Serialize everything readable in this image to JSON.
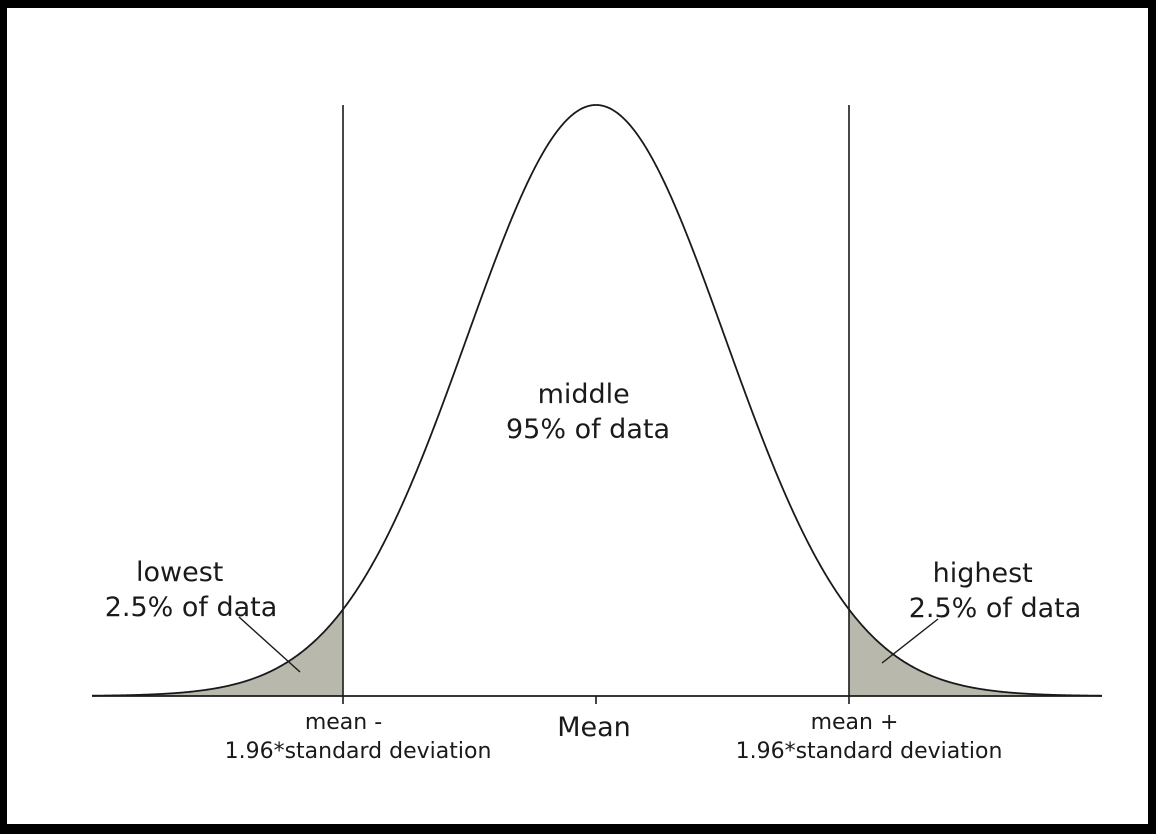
{
  "colors": {
    "curve": "#1a1a1a",
    "tail_fill": "#b9b8ad",
    "background": "#ffffff",
    "frame": "#000000"
  },
  "labels": {
    "middle": [
      "middle",
      "95% of data"
    ],
    "lowest": [
      "lowest",
      "2.5% of data"
    ],
    "highest": [
      "highest",
      "2.5% of data"
    ],
    "left_boundary": [
      "mean -",
      "1.96*standard deviation"
    ],
    "mean": "Mean",
    "right_boundary": [
      "mean +",
      "1.96*standard deviation"
    ]
  },
  "distribution": {
    "type": "normal",
    "boundary_z": 1.96,
    "tail_share_percent": 2.5,
    "middle_share_percent": 95
  }
}
